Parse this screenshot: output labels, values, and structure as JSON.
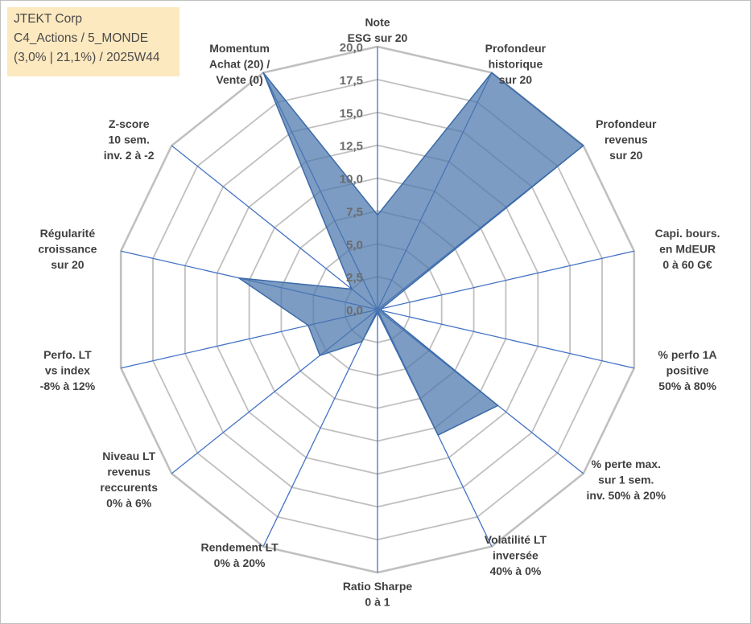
{
  "info": {
    "company": "JTEKT Corp",
    "portfolio": "C4_Actions / 5_MONDE",
    "stats": "(3,0% | 21,1%) / 2025W44"
  },
  "chart_data": {
    "type": "radar",
    "title": "",
    "rmin": 0,
    "rmax": 20,
    "ticks": [
      "0,0",
      "2,5",
      "5,0",
      "7,5",
      "10,0",
      "12,5",
      "15,0",
      "17,5",
      "20,0"
    ],
    "tick_values": [
      0,
      2.5,
      5,
      7.5,
      10,
      12.5,
      15,
      17.5,
      20
    ],
    "axes": [
      {
        "lines": [
          "Note",
          "ESG sur 20"
        ],
        "value": 7.2
      },
      {
        "lines": [
          "Profondeur",
          "historique",
          "sur 20"
        ],
        "value": 20
      },
      {
        "lines": [
          "Profondeur",
          "revenus",
          "sur 20"
        ],
        "value": 20
      },
      {
        "lines": [
          "Capi. bours.",
          "en MdEUR",
          "0 à 60 G€"
        ],
        "value": 0.3
      },
      {
        "lines": [
          "% perfo 1A",
          "positive",
          "50% à 80%"
        ],
        "value": 0.3
      },
      {
        "lines": [
          "% perte max.",
          "sur 1 sem.",
          "inv. 50% à 20%"
        ],
        "value": 11.7
      },
      {
        "lines": [
          "Volatilité LT",
          "inversée",
          "40% à 0%"
        ],
        "value": 10.6
      },
      {
        "lines": [
          "Ratio Sharpe",
          "0 à 1"
        ],
        "value": 0.2
      },
      {
        "lines": [
          "Rendement LT",
          "0% à 20%"
        ],
        "value": 2.7
      },
      {
        "lines": [
          "Niveau LT",
          "revenus",
          "reccurents",
          "0% à 6%"
        ],
        "value": 5.6
      },
      {
        "lines": [
          "Perfo. LT",
          "vs index",
          "-8% à 12%"
        ],
        "value": 5.4
      },
      {
        "lines": [
          "Régularité",
          "croissance",
          "sur 20"
        ],
        "value": 10.8
      },
      {
        "lines": [
          "Z-score",
          "10 sem.",
          "inv. 2 à -2"
        ],
        "value": 2.5
      },
      {
        "lines": [
          "Momentum",
          "Achat (20) /",
          "Vente (0)"
        ],
        "value": 20
      }
    ],
    "colors": {
      "fill": "#4a76ac",
      "stroke": "#3b6aa8",
      "grid": "#c0c0c0",
      "spoke": "#4472c4"
    }
  }
}
